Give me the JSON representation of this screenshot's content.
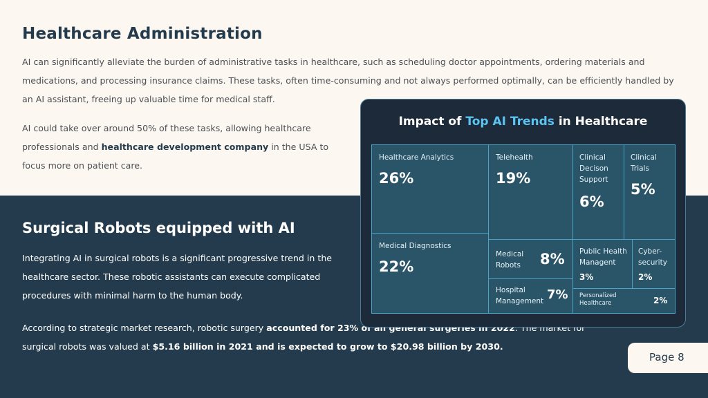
{
  "section1": {
    "title": "Healthcare Administration",
    "para1": "AI can significantly alleviate the burden of administrative tasks in healthcare, such as scheduling doctor appointments, ordering materials and medications, and processing insurance claims. These tasks, often time-consuming and not always performed optimally, can be efficiently handled by an AI assistant, freeing up valuable time for medical staff.",
    "para2_pre": "AI could take over around 50% of these tasks, allowing healthcare professionals and ",
    "para2_link": "healthcare development company",
    "para2_post": " in the USA to focus more on patient care."
  },
  "section2": {
    "title": "Surgical Robots equipped with AI",
    "para1": "Integrating AI in surgical robots is a significant progressive trend in the healthcare sector. These robotic assistants can execute complicated procedures with minimal harm to the human body.",
    "para2_pre": "According to strategic market research, robotic surgery ",
    "para2_bold1": "accounted for 23% of all general surgeries in 2022",
    "para2_mid": ". The market for surgical robots was valued at ",
    "para2_bold2": "$5.16 billion in 2021 and is expected to grow to $20.98 billion by 2030."
  },
  "card": {
    "title_pre": "Impact of ",
    "title_highlight": "Top AI Trends",
    "title_post": " in Healthcare",
    "colors": {
      "tile": "#2a5569",
      "border": "#4aa4c8",
      "highlight": "#5cc4f0"
    }
  },
  "chart_data": {
    "type": "treemap",
    "title": "Impact of Top AI Trends in Healthcare",
    "items": [
      {
        "label": "Healthcare Analytics",
        "value": 26,
        "display": "26%"
      },
      {
        "label": "Telehealth",
        "value": 19,
        "display": "19%"
      },
      {
        "label": "Clinical Decison Support",
        "value": 6,
        "display": "6%"
      },
      {
        "label": "Clinical Trials",
        "value": 5,
        "display": "5%"
      },
      {
        "label": "Medical Diagnostics",
        "value": 22,
        "display": "22%"
      },
      {
        "label": "Medical Robots",
        "value": 8,
        "display": "8%"
      },
      {
        "label": "Public Health Managent",
        "value": 3,
        "display": "3%"
      },
      {
        "label": "Cyber-security",
        "value": 2,
        "display": "2%"
      },
      {
        "label": "Hospital Management",
        "value": 7,
        "display": "7%"
      },
      {
        "label": "Personalized Healthcare",
        "value": 2,
        "display": "2%"
      }
    ]
  },
  "page": {
    "label": "Page 8"
  }
}
